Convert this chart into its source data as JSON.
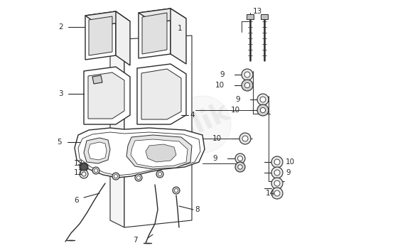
{
  "bg_color": "#ffffff",
  "line_color": "#2a2a2a",
  "fig_width": 5.7,
  "fig_height": 3.49,
  "dpi": 100
}
